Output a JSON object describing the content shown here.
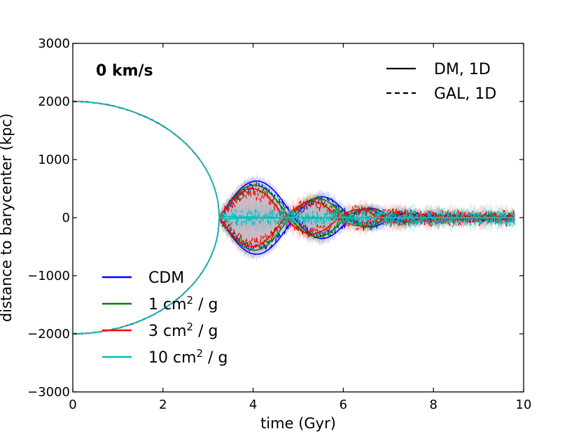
{
  "chart_data": {
    "type": "line",
    "title": "",
    "annotation": "0 km/s",
    "xlabel": "time (Gyr)",
    "ylabel": "distance to barycenter (kpc)",
    "xlim": [
      0,
      10
    ],
    "ylim": [
      -3000,
      3000
    ],
    "xticks": [
      0,
      2,
      4,
      6,
      8,
      10
    ],
    "yticks": [
      -3000,
      -2000,
      -1000,
      0,
      1000,
      2000,
      3000
    ],
    "xtick_labels": [
      "0",
      "2",
      "4",
      "6",
      "8",
      "10"
    ],
    "ytick_labels": [
      "−3000",
      "−2000",
      "−1000",
      "0",
      "1000",
      "2000",
      "3000"
    ],
    "grid": false,
    "initial_separation": 2000,
    "first_crossing": 3.25,
    "end_time": 9.8,
    "series": [
      {
        "name": "CDM",
        "color": "#0000ff",
        "label_sup": "",
        "amplitudes": [
          630,
          360,
          160,
          70,
          40,
          20
        ],
        "periods": [
          1.65,
          1.25,
          0.9,
          0.75,
          0.65,
          0.55
        ],
        "gal_scatter": 90
      },
      {
        "name": "1 cm",
        "sup": "2",
        "unit": " / g",
        "color": "#008000",
        "amplitudes": [
          560,
          330,
          150,
          80,
          50,
          30
        ],
        "periods": [
          1.55,
          1.25,
          0.9,
          0.75,
          0.65,
          0.55
        ],
        "gal_scatter": 110
      },
      {
        "name": "3 cm",
        "sup": "2",
        "unit": " / g",
        "color": "#ff0000",
        "amplitudes": [
          500,
          280,
          140,
          90,
          60,
          40
        ],
        "periods": [
          1.45,
          1.2,
          0.9,
          0.75,
          0.65,
          0.55
        ],
        "gal_scatter": 140
      },
      {
        "name": "10 cm",
        "sup": "2",
        "unit": " / g",
        "color": "#00bfbf",
        "amplitudes": [
          20,
          15,
          10,
          10,
          8,
          6
        ],
        "periods": [
          0.45,
          0.45,
          0.45,
          0.45,
          0.45,
          0.45
        ],
        "gal_scatter": 180
      }
    ],
    "style_legend": [
      {
        "label": "DM, 1D",
        "style": "solid"
      },
      {
        "label": "GAL, 1D",
        "style": "dashed"
      }
    ],
    "legend_location": "lower-left"
  }
}
